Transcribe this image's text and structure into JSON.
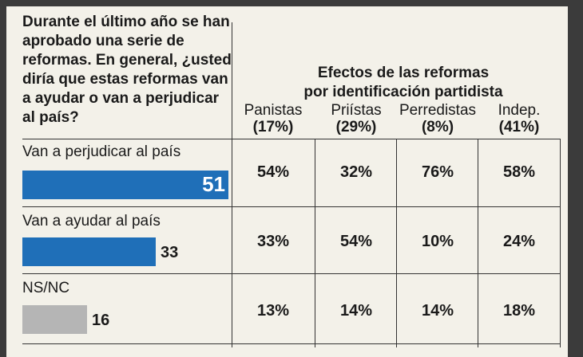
{
  "question": "Durante el último año se han aprobado una serie de reformas. En general, ¿usted diría que estas reformas van a ayudar o van a perjudicar al país?",
  "heading_line1": "Efectos de las reformas",
  "heading_line2": "por identificación partidista",
  "colors": {
    "blue": "#1f6fb8",
    "gray": "#b5b5b5",
    "panel": "#f3f1e9"
  },
  "chart_data": {
    "type": "bar",
    "categories": [
      "Van a perjudicar al país",
      "Van a ayudar al país",
      "NS/NC"
    ],
    "values": [
      51,
      33,
      16
    ],
    "value_labels": [
      "51",
      "33",
      "16"
    ],
    "xlim": [
      0,
      51
    ]
  },
  "table": {
    "columns": [
      {
        "name": "Panistas",
        "share": "(17%)"
      },
      {
        "name": "Priístas",
        "share": "(29%)"
      },
      {
        "name": "Perredistas",
        "share": "(8%)"
      },
      {
        "name": "Indep.",
        "share": "(41%)"
      }
    ],
    "rows": [
      [
        "54%",
        "32%",
        "76%",
        "58%"
      ],
      [
        "33%",
        "54%",
        "10%",
        "24%"
      ],
      [
        "13%",
        "14%",
        "14%",
        "18%"
      ]
    ]
  }
}
